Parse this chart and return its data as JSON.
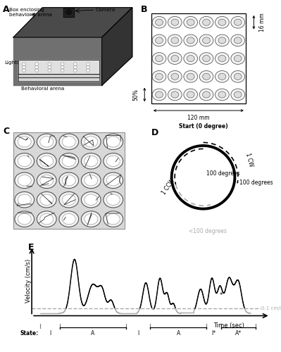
{
  "panel_label_fontsize": 9,
  "background_color": "#ffffff",
  "figure_width": 3.99,
  "figure_height": 5.0,
  "dpi": 100,
  "panelA": {
    "label_fontsize": 5.2
  },
  "panelB": {
    "n_cols": 6,
    "n_rows": 5,
    "label_120mm": "120 mm",
    "label_16mm": "16 mm",
    "label_50pct": "50%",
    "fontsize": 5.5
  },
  "panelC": {
    "n_cols": 5,
    "n_rows": 5
  },
  "panelD": {
    "start_label": "Start (0 degree)",
    "cw_label": "1 CW",
    "ccw_label": "1 CCW",
    "deg100_inner": "100 degrees",
    "deg100_outer": "100 degrees",
    "deg_less": "<100 degrees",
    "fontsize": 5.5
  },
  "panelE": {
    "ylabel": "Velocity (cm/s)",
    "xlabel": "Time (sec)",
    "threshold_label": "0.1 cm/s",
    "state_label": "State:",
    "fontsize": 6.0
  }
}
